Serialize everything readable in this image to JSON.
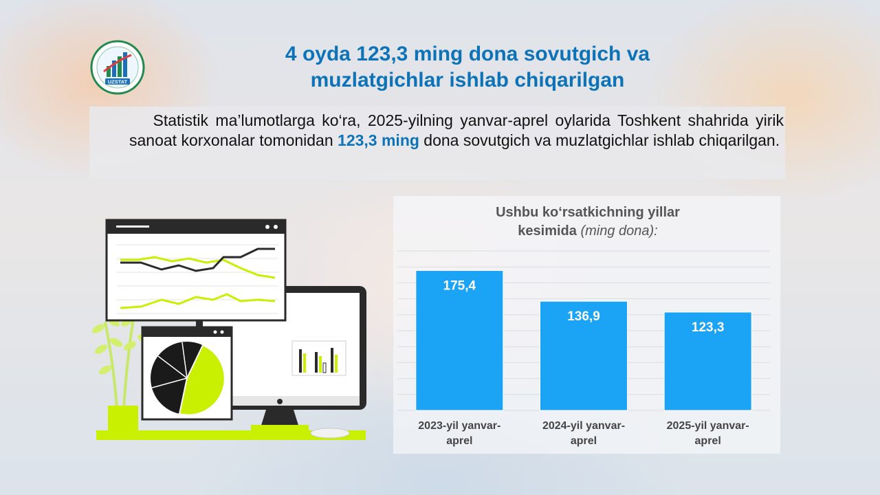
{
  "logo": {
    "icon": "uzstat-logo-icon",
    "text": "UZSTAT"
  },
  "title": {
    "line1": "4 oyda 123,3 ming dona sovutgich va",
    "line2": "muzlatgichlar ishlab chiqarilgan"
  },
  "paragraph": {
    "part1": "Statistik ma’lumotlarga ko‘ra, 2025-yilning yanvar-aprel oylarida Toshkent shahrida yirik sanoat korxonalar tomonidan ",
    "highlight": "123,3 ming",
    "part2": " dona sovutgich va muzlatgichlar ishlab chiqarilgan."
  },
  "colors": {
    "title": "#0d73b8",
    "bar": "#1ba3f5",
    "illustration_accent": "#c8f000"
  },
  "chart_data": {
    "type": "bar",
    "title": "Ushbu ko‘rsatkichning yillar kesimida",
    "unit": "(ming dona):",
    "categories": [
      [
        "2023-yil yanvar-",
        "aprel"
      ],
      [
        "2024-yil yanvar-",
        "aprel"
      ],
      [
        "2025-yil yanvar-",
        "aprel"
      ]
    ],
    "values": [
      175.4,
      136.9,
      123.3
    ],
    "data_labels": [
      "175,4",
      "136,9",
      "123,3"
    ],
    "ylim": [
      0,
      200
    ],
    "grid": true
  }
}
